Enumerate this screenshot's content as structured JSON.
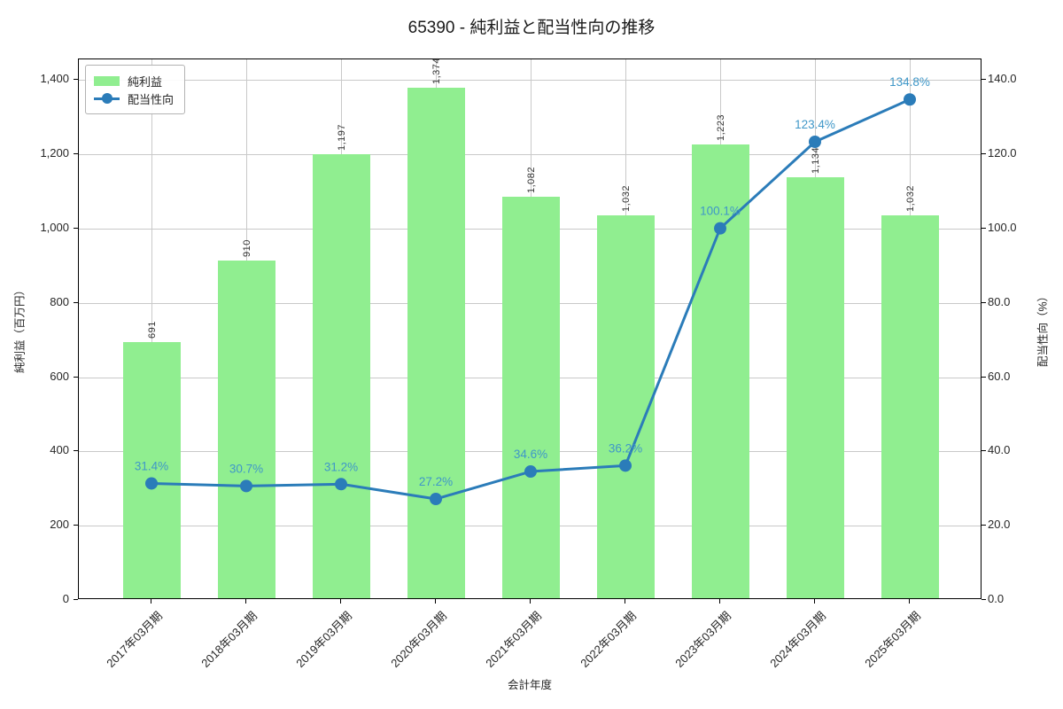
{
  "title": "65390 - 純利益と配当性向の推移",
  "colors": {
    "bar": "#90ee90",
    "line": "#2b7cb9",
    "line_label": "#3f97c8",
    "grid": "#c9c9c9",
    "bar_label": "#333333"
  },
  "legend": {
    "position": "upper left",
    "items": [
      "純利益",
      "配当性向"
    ]
  },
  "chart_data": {
    "type": "bar",
    "subtype": "bar+line dual axis",
    "title": "65390 - 純利益と配当性向の推移",
    "categories": [
      "2017年03月期",
      "2018年03月期",
      "2019年03月期",
      "2020年03月期",
      "2021年03月期",
      "2022年03月期",
      "2023年03月期",
      "2024年03月期",
      "2025年03月期"
    ],
    "series": [
      {
        "name": "純利益",
        "type": "bar",
        "axis": "left",
        "unit": "百万円",
        "color": "#90ee90",
        "values": [
          691,
          910,
          1197,
          1374,
          1082,
          1032,
          1223,
          1134,
          1032
        ],
        "labels": [
          "691",
          "910",
          "1,197",
          "1,374",
          "1,082",
          "1,032",
          "1,223",
          "1,134",
          "1,032"
        ]
      },
      {
        "name": "配当性向",
        "type": "line",
        "axis": "right",
        "unit": "%",
        "color": "#2b7cb9",
        "label_color": "#3f97c8",
        "values": [
          31.4,
          30.7,
          31.2,
          27.2,
          34.6,
          36.2,
          100.1,
          123.4,
          134.8
        ],
        "labels": [
          "31.4%",
          "30.7%",
          "31.2%",
          "27.2%",
          "34.6%",
          "36.2%",
          "100.1%",
          "123.4%",
          "134.8%"
        ]
      }
    ],
    "xlabel": "会計年度",
    "ylabel_left": "純利益（百万円）",
    "ylabel_right": "配当性向（%）",
    "ylim_left": [
      0,
      1456
    ],
    "ylim_right": [
      0,
      145.6
    ],
    "yticks_left": [
      {
        "v": 0,
        "label": "0"
      },
      {
        "v": 200,
        "label": "200"
      },
      {
        "v": 400,
        "label": "400"
      },
      {
        "v": 600,
        "label": "600"
      },
      {
        "v": 800,
        "label": "800"
      },
      {
        "v": 1000,
        "label": "1,000"
      },
      {
        "v": 1200,
        "label": "1,200"
      },
      {
        "v": 1400,
        "label": "1,400"
      }
    ],
    "yticks_right": [
      {
        "v": 0,
        "label": "0.0"
      },
      {
        "v": 20,
        "label": "20.0"
      },
      {
        "v": 40,
        "label": "40.0"
      },
      {
        "v": 60,
        "label": "60.0"
      },
      {
        "v": 80,
        "label": "80.0"
      },
      {
        "v": 100,
        "label": "100.0"
      },
      {
        "v": 120,
        "label": "120.0"
      },
      {
        "v": 140,
        "label": "140.0"
      }
    ],
    "grid": true,
    "legend_position": "upper left"
  }
}
